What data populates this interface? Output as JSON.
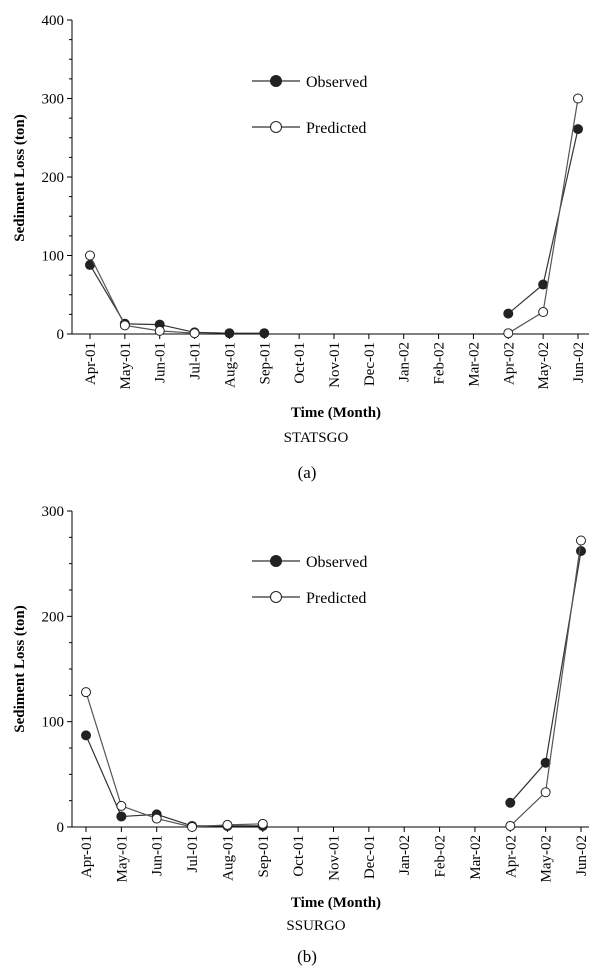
{
  "chart_data": [
    {
      "type": "line",
      "panel_label": "(a)",
      "subtitle": "STATSGO",
      "xlabel": "Time (Month)",
      "ylabel": "Sediment Loss (ton)",
      "ylim": [
        0,
        400
      ],
      "yticks": [
        "0",
        "100",
        "200",
        "300",
        "400"
      ],
      "categories": [
        "Apr-01",
        "May-01",
        "Jun-01",
        "Jul-01",
        "Aug-01",
        "Sep-01",
        "Oct-01",
        "Nov-01",
        "Dec-01",
        "Jan-02",
        "Feb-02",
        "Mar-02",
        "Apr-02",
        "May-02",
        "Jun-02"
      ],
      "legend_position": "top-center",
      "series": [
        {
          "name": "Observed",
          "marker": "filled",
          "segments": [
            [
              [
                0,
                88
              ],
              [
                1,
                13
              ],
              [
                2,
                12
              ],
              [
                3,
                2
              ],
              [
                4,
                1
              ],
              [
                5,
                1
              ]
            ],
            [
              [
                12,
                26
              ],
              [
                13,
                63
              ],
              [
                14,
                261
              ]
            ]
          ]
        },
        {
          "name": "Predicted",
          "marker": "open",
          "segments": [
            [
              [
                0,
                100
              ],
              [
                1,
                11
              ],
              [
                2,
                4
              ],
              [
                3,
                1
              ]
            ],
            [
              [
                12,
                1
              ],
              [
                13,
                28
              ],
              [
                14,
                300
              ]
            ]
          ]
        }
      ]
    },
    {
      "type": "line",
      "panel_label": "(b)",
      "subtitle": "SSURGO",
      "xlabel": "Time (Month)",
      "ylabel": "Sediment Loss (ton)",
      "ylim": [
        0,
        300
      ],
      "yticks": [
        "0",
        "100",
        "200",
        "300"
      ],
      "categories": [
        "Apr-01",
        "May-01",
        "Jun-01",
        "Jul-01",
        "Aug-01",
        "Sep-01",
        "Oct-01",
        "Nov-01",
        "Dec-01",
        "Jan-02",
        "Feb-02",
        "Mar-02",
        "Apr-02",
        "May-02",
        "Jun-02"
      ],
      "legend_position": "top-center",
      "series": [
        {
          "name": "Observed",
          "marker": "filled",
          "segments": [
            [
              [
                0,
                87
              ],
              [
                1,
                10
              ],
              [
                2,
                12
              ],
              [
                3,
                1
              ],
              [
                4,
                1
              ],
              [
                5,
                1
              ]
            ],
            [
              [
                12,
                23
              ],
              [
                13,
                61
              ],
              [
                14,
                262
              ]
            ]
          ]
        },
        {
          "name": "Predicted",
          "marker": "open",
          "segments": [
            [
              [
                0,
                128
              ],
              [
                1,
                20
              ],
              [
                2,
                8
              ],
              [
                3,
                0
              ],
              [
                4,
                2
              ],
              [
                5,
                3
              ]
            ],
            [
              [
                12,
                1
              ],
              [
                13,
                33
              ],
              [
                14,
                272
              ]
            ]
          ]
        }
      ]
    }
  ]
}
